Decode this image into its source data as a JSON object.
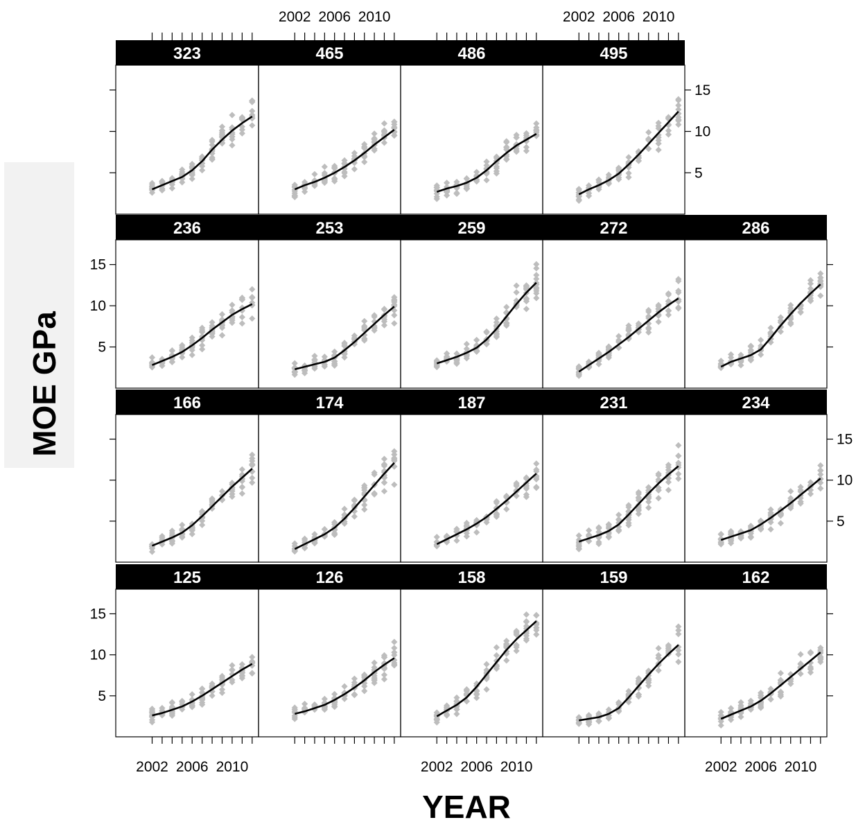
{
  "chart_data": {
    "type": "scatter",
    "layout": "lattice grid, 4 rows of panels",
    "xlabel": "YEAR",
    "ylabel": "MOE GPa",
    "x_ticks": [
      "2002",
      "2006",
      "2010"
    ],
    "y_ticks": [
      "5",
      "10",
      "15"
    ],
    "xlim": [
      1998.5,
      2012.5
    ],
    "ylim": [
      0,
      18
    ],
    "point_color": "#bdbdbd",
    "line_color": "#000000",
    "strip_color": "#000000",
    "years": [
      2002,
      2003,
      2004,
      2005,
      2006,
      2007,
      2008,
      2009,
      2010,
      2011,
      2012
    ],
    "panels": [
      {
        "row": 0,
        "col": 0,
        "label": "323",
        "trend": [
          3.0,
          3.5,
          4.0,
          4.5,
          5.3,
          6.4,
          7.8,
          9.0,
          10.1,
          11.0,
          11.8
        ]
      },
      {
        "row": 0,
        "col": 1,
        "label": "465",
        "trend": [
          3.0,
          3.5,
          3.9,
          4.4,
          5.0,
          5.7,
          6.5,
          7.4,
          8.4,
          9.3,
          10.2
        ]
      },
      {
        "row": 0,
        "col": 2,
        "label": "486",
        "trend": [
          2.7,
          3.1,
          3.4,
          3.8,
          4.4,
          5.3,
          6.4,
          7.4,
          8.3,
          9.0,
          9.7
        ]
      },
      {
        "row": 0,
        "col": 3,
        "label": "495",
        "trend": [
          2.4,
          3.0,
          3.5,
          4.1,
          4.9,
          6.0,
          7.2,
          8.5,
          9.8,
          11.1,
          12.4
        ]
      },
      {
        "row": 1,
        "col": 0,
        "label": "236",
        "trend": [
          2.8,
          3.3,
          3.8,
          4.4,
          5.2,
          6.1,
          7.1,
          8.0,
          8.9,
          9.6,
          10.2
        ]
      },
      {
        "row": 1,
        "col": 1,
        "label": "253",
        "trend": [
          2.3,
          2.6,
          2.9,
          3.2,
          3.7,
          4.6,
          5.6,
          6.7,
          7.8,
          8.9,
          9.9
        ]
      },
      {
        "row": 1,
        "col": 2,
        "label": "259",
        "trend": [
          3.0,
          3.4,
          3.8,
          4.3,
          4.9,
          5.9,
          7.2,
          8.7,
          10.2,
          11.6,
          12.8
        ]
      },
      {
        "row": 1,
        "col": 3,
        "label": "272",
        "trend": [
          2.0,
          2.8,
          3.6,
          4.4,
          5.3,
          6.2,
          7.2,
          8.2,
          9.2,
          10.1,
          10.9
        ]
      },
      {
        "row": 1,
        "col": 4,
        "label": "286",
        "trend": [
          2.6,
          3.2,
          3.6,
          4.0,
          4.7,
          6.1,
          7.6,
          9.0,
          10.3,
          11.5,
          12.6
        ]
      },
      {
        "row": 2,
        "col": 0,
        "label": "166",
        "trend": [
          2.0,
          2.5,
          3.0,
          3.6,
          4.5,
          5.6,
          6.8,
          8.0,
          9.2,
          10.3,
          11.4
        ]
      },
      {
        "row": 2,
        "col": 1,
        "label": "174",
        "trend": [
          1.6,
          2.2,
          2.8,
          3.4,
          4.2,
          5.3,
          6.6,
          8.0,
          9.4,
          10.8,
          12.1
        ]
      },
      {
        "row": 2,
        "col": 2,
        "label": "187",
        "trend": [
          2.2,
          2.8,
          3.4,
          4.0,
          4.7,
          5.5,
          6.5,
          7.5,
          8.6,
          9.7,
          10.8
        ]
      },
      {
        "row": 2,
        "col": 3,
        "label": "231",
        "trend": [
          2.5,
          2.9,
          3.3,
          3.8,
          4.6,
          5.8,
          7.1,
          8.4,
          9.6,
          10.7,
          11.7
        ]
      },
      {
        "row": 2,
        "col": 4,
        "label": "234",
        "trend": [
          2.7,
          3.1,
          3.5,
          3.9,
          4.6,
          5.4,
          6.3,
          7.2,
          8.2,
          9.2,
          10.2
        ]
      },
      {
        "row": 3,
        "col": 0,
        "label": "125",
        "trend": [
          2.6,
          2.9,
          3.3,
          3.7,
          4.3,
          5.0,
          5.8,
          6.6,
          7.4,
          8.2,
          8.9
        ]
      },
      {
        "row": 3,
        "col": 1,
        "label": "126",
        "trend": [
          2.8,
          3.1,
          3.5,
          3.9,
          4.5,
          5.2,
          6.0,
          6.9,
          7.9,
          8.8,
          9.6
        ]
      },
      {
        "row": 3,
        "col": 2,
        "label": "158",
        "trend": [
          2.5,
          3.2,
          3.9,
          4.8,
          6.1,
          7.6,
          9.1,
          10.6,
          11.9,
          13.0,
          14.1
        ]
      },
      {
        "row": 3,
        "col": 3,
        "label": "159",
        "trend": [
          2.0,
          2.2,
          2.4,
          2.8,
          3.5,
          4.8,
          6.2,
          7.6,
          8.9,
          10.1,
          11.2
        ]
      },
      {
        "row": 3,
        "col": 4,
        "label": "162",
        "trend": [
          2.2,
          2.7,
          3.2,
          3.7,
          4.4,
          5.3,
          6.3,
          7.3,
          8.3,
          9.3,
          10.3
        ]
      }
    ]
  }
}
